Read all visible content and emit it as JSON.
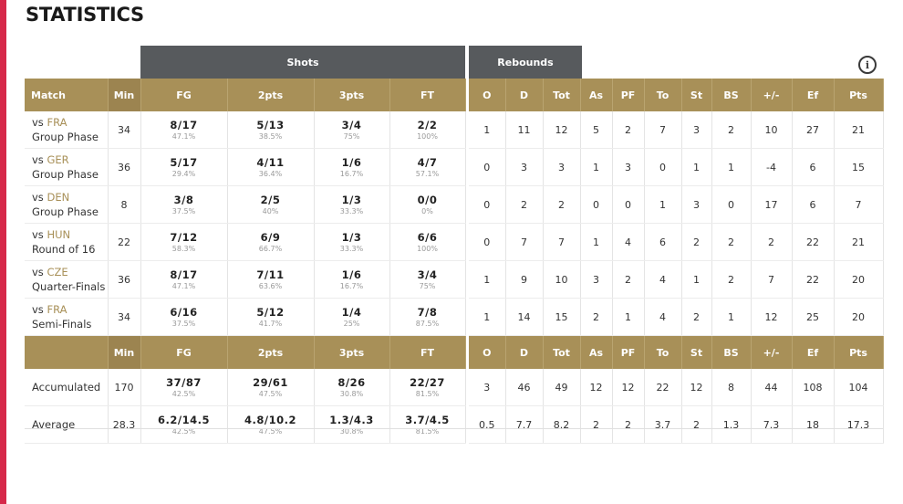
{
  "title": "STATISTICS",
  "groups": {
    "shots": "Shots",
    "rebounds": "Rebounds"
  },
  "info_icon": "info-icon",
  "colors": {
    "header": "#a89058",
    "group": "#575a5d",
    "accent": "#d6294a"
  },
  "columns": {
    "match": "Match",
    "min": "Min",
    "fg": "FG",
    "p2": "2pts",
    "p3": "3pts",
    "ft": "FT",
    "o": "O",
    "d": "D",
    "tot": "Tot",
    "as": "As",
    "pf": "PF",
    "to": "To",
    "st": "St",
    "bs": "BS",
    "pm": "+/-",
    "ef": "Ef",
    "pts": "Pts"
  },
  "matches": [
    {
      "vs": "vs",
      "opp": "FRA",
      "phase": "Group Phase",
      "min": "34",
      "fg": "8/17",
      "fg_pct": "47.1%",
      "p2": "5/13",
      "p2_pct": "38.5%",
      "p3": "3/4",
      "p3_pct": "75%",
      "ft": "2/2",
      "ft_pct": "100%",
      "o": "1",
      "d": "11",
      "tot": "12",
      "as": "5",
      "pf": "2",
      "to": "7",
      "st": "3",
      "bs": "2",
      "pm": "10",
      "ef": "27",
      "pts": "21"
    },
    {
      "vs": "vs",
      "opp": "GER",
      "phase": "Group Phase",
      "min": "36",
      "fg": "5/17",
      "fg_pct": "29.4%",
      "p2": "4/11",
      "p2_pct": "36.4%",
      "p3": "1/6",
      "p3_pct": "16.7%",
      "ft": "4/7",
      "ft_pct": "57.1%",
      "o": "0",
      "d": "3",
      "tot": "3",
      "as": "1",
      "pf": "3",
      "to": "0",
      "st": "1",
      "bs": "1",
      "pm": "-4",
      "ef": "6",
      "pts": "15"
    },
    {
      "vs": "vs",
      "opp": "DEN",
      "phase": "Group Phase",
      "min": "8",
      "fg": "3/8",
      "fg_pct": "37.5%",
      "p2": "2/5",
      "p2_pct": "40%",
      "p3": "1/3",
      "p3_pct": "33.3%",
      "ft": "0/0",
      "ft_pct": "0%",
      "o": "0",
      "d": "2",
      "tot": "2",
      "as": "0",
      "pf": "0",
      "to": "1",
      "st": "3",
      "bs": "0",
      "pm": "17",
      "ef": "6",
      "pts": "7"
    },
    {
      "vs": "vs",
      "opp": "HUN",
      "phase": "Round of 16",
      "min": "22",
      "fg": "7/12",
      "fg_pct": "58.3%",
      "p2": "6/9",
      "p2_pct": "66.7%",
      "p3": "1/3",
      "p3_pct": "33.3%",
      "ft": "6/6",
      "ft_pct": "100%",
      "o": "0",
      "d": "7",
      "tot": "7",
      "as": "1",
      "pf": "4",
      "to": "6",
      "st": "2",
      "bs": "2",
      "pm": "2",
      "ef": "22",
      "pts": "21"
    },
    {
      "vs": "vs",
      "opp": "CZE",
      "phase": "Quarter-Finals",
      "min": "36",
      "fg": "8/17",
      "fg_pct": "47.1%",
      "p2": "7/11",
      "p2_pct": "63.6%",
      "p3": "1/6",
      "p3_pct": "16.7%",
      "ft": "3/4",
      "ft_pct": "75%",
      "o": "1",
      "d": "9",
      "tot": "10",
      "as": "3",
      "pf": "2",
      "to": "4",
      "st": "1",
      "bs": "2",
      "pm": "7",
      "ef": "22",
      "pts": "20"
    },
    {
      "vs": "vs",
      "opp": "FRA",
      "phase": "Semi-Finals",
      "min": "34",
      "fg": "6/16",
      "fg_pct": "37.5%",
      "p2": "5/12",
      "p2_pct": "41.7%",
      "p3": "1/4",
      "p3_pct": "25%",
      "ft": "7/8",
      "ft_pct": "87.5%",
      "o": "1",
      "d": "14",
      "tot": "15",
      "as": "2",
      "pf": "1",
      "to": "4",
      "st": "2",
      "bs": "1",
      "pm": "12",
      "ef": "25",
      "pts": "20"
    }
  ],
  "accumulated": {
    "label": "Accumulated",
    "min": "170",
    "fg": "37/87",
    "fg_pct": "42.5%",
    "p2": "29/61",
    "p2_pct": "47.5%",
    "p3": "8/26",
    "p3_pct": "30.8%",
    "ft": "22/27",
    "ft_pct": "81.5%",
    "o": "3",
    "d": "46",
    "tot": "49",
    "as": "12",
    "pf": "12",
    "to": "22",
    "st": "12",
    "bs": "8",
    "pm": "44",
    "ef": "108",
    "pts": "104"
  },
  "average": {
    "label": "Average",
    "min": "28.3",
    "fg": "6.2/14.5",
    "fg_pct": "42.5%",
    "p2": "4.8/10.2",
    "p2_pct": "47.5%",
    "p3": "1.3/4.3",
    "p3_pct": "30.8%",
    "ft": "3.7/4.5",
    "ft_pct": "81.5%",
    "o": "0.5",
    "d": "7.7",
    "tot": "8.2",
    "as": "2",
    "pf": "2",
    "to": "3.7",
    "st": "2",
    "bs": "1.3",
    "pm": "7.3",
    "ef": "18",
    "pts": "17.3"
  }
}
